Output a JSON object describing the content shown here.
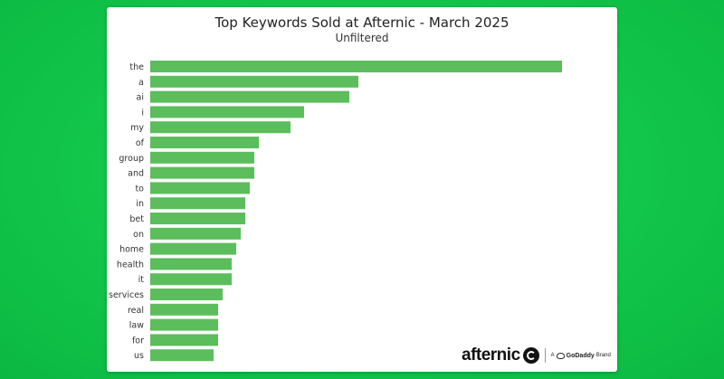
{
  "chart_data": {
    "type": "bar",
    "orientation": "horizontal",
    "title": "Top Keywords Sold at Afternic - March 2025",
    "subtitle": "Unfiltered",
    "categories": [
      "the",
      "a",
      "ai",
      "i",
      "my",
      "of",
      "group",
      "and",
      "to",
      "in",
      "bet",
      "on",
      "home",
      "health",
      "it",
      "services",
      "real",
      "law",
      "for",
      "us"
    ],
    "values": [
      91,
      46,
      44,
      34,
      31,
      24,
      23,
      23,
      22,
      21,
      21,
      20,
      19,
      18,
      18,
      16,
      15,
      15,
      15,
      14
    ],
    "xlim": [
      0,
      100
    ],
    "grid": false,
    "bar_color": "#5cbd5c"
  },
  "branding": {
    "name": "afternic",
    "tag_prefix": "A",
    "tag_company": "GoDaddy",
    "tag_suffix": "Brand"
  }
}
